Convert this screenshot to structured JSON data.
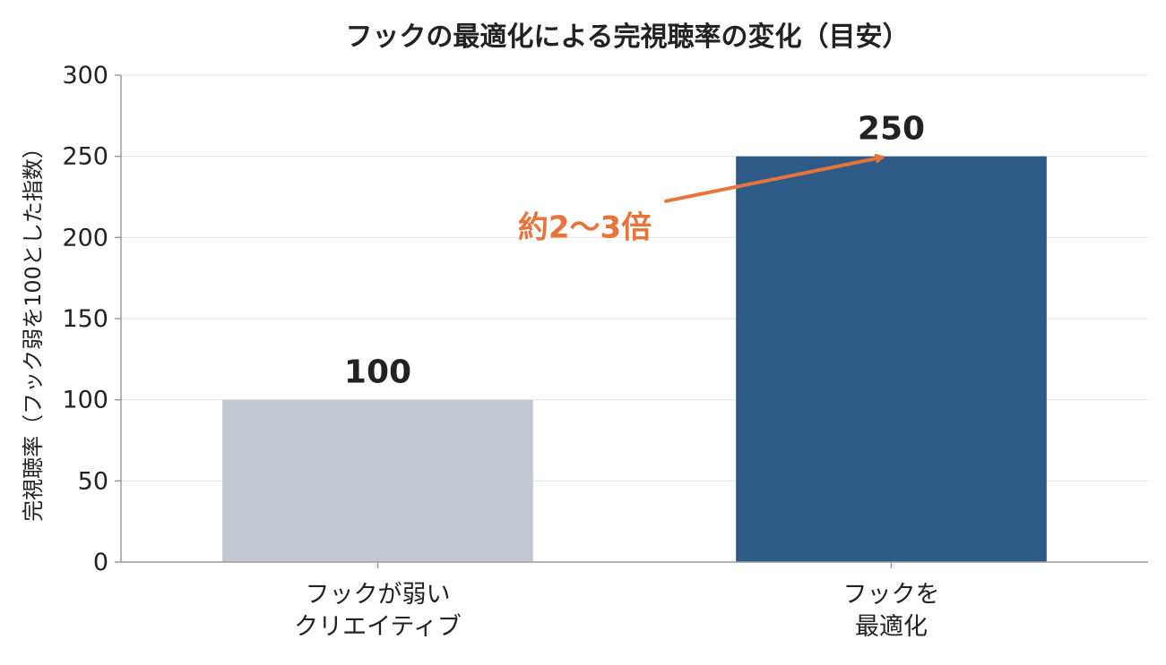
{
  "chart_data": {
    "type": "bar",
    "title": "フックの最適化による完視聴率の変化（目安）",
    "xlabel": "",
    "ylabel": "完視聴率（フック弱を100とした指数）",
    "categories": [
      [
        "フックが弱い",
        "クリエイティブ"
      ],
      [
        "フックを",
        "最適化"
      ]
    ],
    "values": [
      100,
      250
    ],
    "data_labels": [
      "100",
      "250"
    ],
    "bar_colors": [
      "#c3c7cf",
      "#2e5a87"
    ],
    "ylim": [
      0,
      300
    ],
    "yticks": [
      0,
      50,
      100,
      150,
      200,
      250,
      300
    ],
    "ytick_labels": [
      "0",
      "50",
      "100",
      "150",
      "200",
      "250",
      "300"
    ],
    "grid": true,
    "annotation": {
      "text": "約2〜3倍",
      "color": "#e8743b",
      "target_category_index": 1,
      "target_value": 250
    }
  }
}
